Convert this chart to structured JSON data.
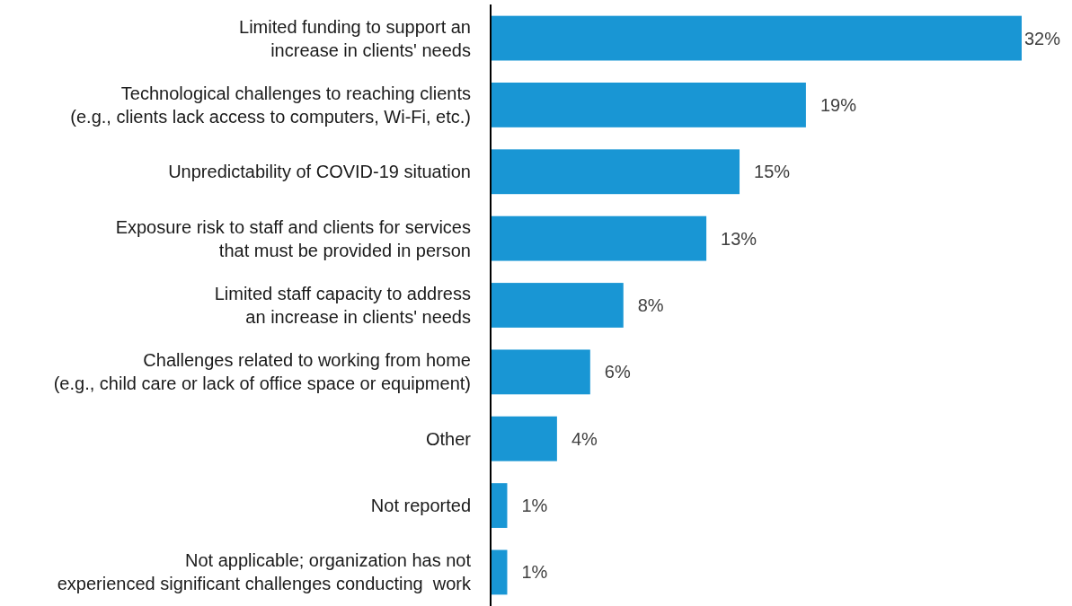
{
  "chart_data": {
    "type": "bar",
    "orientation": "horizontal",
    "categories": [
      "Limited funding to support an\nincrease in clients' needs",
      "Technological challenges to reaching clients\n(e.g., clients lack access to computers, Wi-Fi, etc.)",
      "Unpredictability of COVID-19 situation",
      "Exposure risk to staff and clients for services\nthat must be provided in person",
      "Limited staff capacity to address\nan increase in clients' needs",
      "Challenges related to working from home\n(e.g., child care or lack of office space or equipment)",
      "Other",
      "Not reported",
      "Not applicable; organization has not\nexperienced significant challenges conducting  work"
    ],
    "values": [
      32,
      19,
      15,
      13,
      8,
      6,
      4,
      1,
      1
    ],
    "value_labels": [
      "32%",
      "19%",
      "15%",
      "13%",
      "8%",
      "6%",
      "4%",
      "1%",
      "1%"
    ],
    "color": "#1996d4"
  }
}
